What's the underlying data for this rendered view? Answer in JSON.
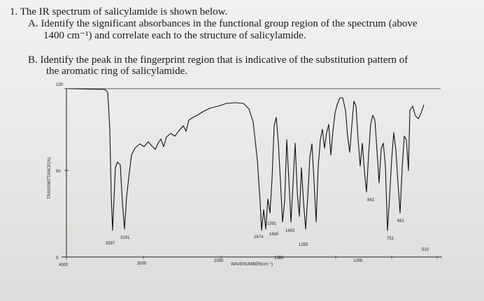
{
  "question": {
    "number": "1.",
    "intro": "The IR spectrum of salicylamide is shown below.",
    "part_a_label": "A.",
    "part_a_line1": "Identify the significant absorbances in the functional group region of the spectrum (above",
    "part_a_line2": "1400 cm⁻¹) and correlate each to the structure of salicylamide.",
    "part_b_label": "B.",
    "part_b_line1": "Identify the peak in the fingerprint region that is indicative of the substitution pattern of",
    "part_b_line2": "the aromatic ring of salicylamide."
  },
  "spectrum": {
    "y_axis_label": "TRANSMITTANCE(%)",
    "x_axis_label": "WAVENUMBER(cm⁻¹)",
    "y_ticks": [
      "100",
      "50",
      "0"
    ],
    "x_ticks": [
      "4000",
      "3000",
      "2000",
      "1500",
      "1000"
    ],
    "peak_labels": {
      "p3397": "3397",
      "p3191": "3191",
      "p1674": "1674",
      "p1630": "1630",
      "p1591": "1591",
      "p1493": "1493",
      "p1255": "1255",
      "p842": "842",
      "p751": "751",
      "p661": "661",
      "p510": "510"
    }
  }
}
